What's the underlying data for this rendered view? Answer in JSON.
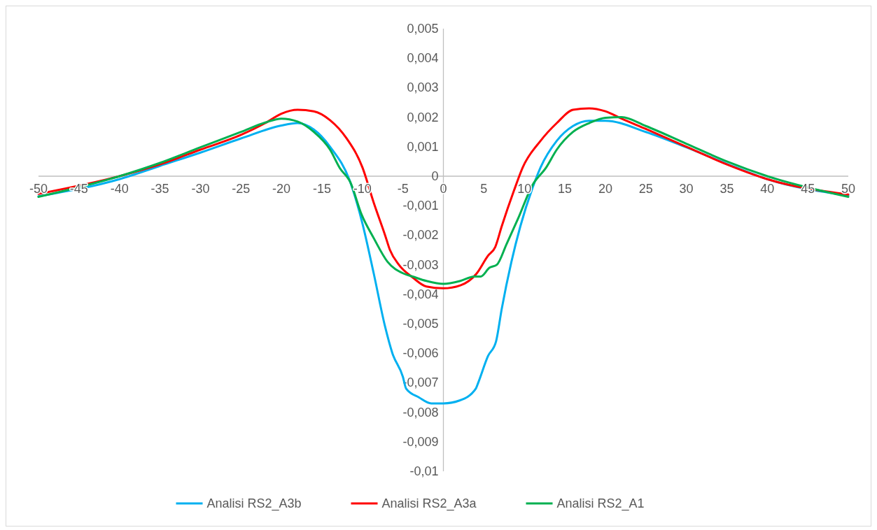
{
  "chart_data": {
    "type": "line",
    "legend": "bottom",
    "grid": false,
    "marker": "none",
    "line_style": "solid",
    "xlim": [
      -50,
      50
    ],
    "xticks": [
      -50,
      -45,
      -40,
      -35,
      -30,
      -25,
      -20,
      -15,
      -10,
      -5,
      0,
      5,
      10,
      15,
      20,
      25,
      30,
      35,
      40,
      45,
      50
    ],
    "ylim": [
      -0.01,
      0.005
    ],
    "yticks": [
      {
        "value": -0.01,
        "label": "-0,01"
      },
      {
        "value": -0.009,
        "label": "-0,009"
      },
      {
        "value": -0.008,
        "label": "-0,008"
      },
      {
        "value": -0.007,
        "label": "-0,007"
      },
      {
        "value": -0.006,
        "label": "-0,006"
      },
      {
        "value": -0.005,
        "label": "-0,005"
      },
      {
        "value": -0.004,
        "label": "-0,004"
      },
      {
        "value": -0.003,
        "label": "-0,003"
      },
      {
        "value": -0.002,
        "label": "-0,002"
      },
      {
        "value": -0.001,
        "label": "-0,001"
      },
      {
        "value": 0,
        "label": "0"
      },
      {
        "value": 0.001,
        "label": "0,001"
      },
      {
        "value": 0.002,
        "label": "0,002"
      },
      {
        "value": 0.003,
        "label": "0,003"
      },
      {
        "value": 0.004,
        "label": "0,004"
      },
      {
        "value": 0.005,
        "label": "0,005"
      }
    ],
    "series": [
      {
        "name": "Analisi RS2_A3b",
        "color": "#00b0f0",
        "x": [
          -50,
          -40,
          -35,
          -30,
          -25,
          -20,
          -18,
          -16,
          -14,
          -11.5,
          -10,
          -8.6,
          -7.2,
          -6.3,
          -5,
          -4.6,
          -3,
          -1.5,
          0,
          2,
          4,
          4.3,
          5.5,
          6.5,
          7.2,
          8.4,
          9.5,
          11,
          12,
          14,
          16,
          18,
          20,
          25,
          30,
          35,
          40,
          50
        ],
        "values": [
          -0.00068,
          -0.0001,
          0.00035,
          0.0008,
          0.00128,
          0.00172,
          0.0018,
          0.00158,
          0.001,
          -0.0002,
          -0.0016,
          -0.0033,
          -0.0051,
          -0.006,
          -0.0068,
          -0.0072,
          -0.0075,
          -0.0077,
          -0.0077,
          -0.0076,
          -0.0072,
          -0.007,
          -0.0061,
          -0.0056,
          -0.0045,
          -0.0029,
          -0.0017,
          -0.0004,
          0.0003,
          0.0012,
          0.0017,
          0.00188,
          0.00188,
          0.0015,
          0.00098,
          0.00042,
          -0.0001,
          -0.00065
        ]
      },
      {
        "name": "Analisi RS2_A3a",
        "color": "#ff0000",
        "x": [
          -50,
          -40,
          -35,
          -30,
          -25,
          -22,
          -20,
          -18,
          -16,
          -14,
          -12,
          -10,
          -8.6,
          -7.2,
          -6.6,
          -5.5,
          -3.8,
          -2.1,
          0,
          2.1,
          4.1,
          5.5,
          6.4,
          7.2,
          8.7,
          9.8,
          12,
          14,
          16,
          18,
          20,
          22,
          25,
          30,
          35,
          40,
          50
        ],
        "values": [
          -0.0006,
          0,
          0.0004,
          0.0009,
          0.0014,
          0.0018,
          0.00212,
          0.00225,
          0.0022,
          0.0019,
          0.0013,
          0.0003,
          -0.0009,
          -0.002,
          -0.0025,
          -0.003,
          -0.00343,
          -0.00374,
          -0.0038,
          -0.0037,
          -0.0033,
          -0.0027,
          -0.0024,
          -0.0017,
          -0.0005,
          0.0003,
          0.0012,
          0.0018,
          0.00225,
          0.0023,
          0.0022,
          0.00195,
          0.0016,
          0.001,
          0.0004,
          -0.0001,
          -0.00062
        ]
      },
      {
        "name": "Analisi RS2_A1",
        "color": "#00b050",
        "x": [
          -50,
          -40,
          -35,
          -30,
          -25,
          -22,
          -20,
          -18,
          -16,
          -14,
          -12.8,
          -11.5,
          -10.1,
          -8.6,
          -6.9,
          -4.9,
          -3.8,
          -2.1,
          0,
          2.1,
          3.8,
          4.6,
          5.7,
          6.6,
          7.8,
          9.2,
          11,
          12.7,
          14,
          16,
          18,
          20,
          22,
          25,
          30,
          35,
          40,
          50
        ],
        "values": [
          -0.0007,
          0,
          0.00045,
          0.00098,
          0.0015,
          0.00182,
          0.00195,
          0.00185,
          0.0015,
          0.0009,
          0.00028,
          -0.0002,
          -0.0013,
          -0.0021,
          -0.0029,
          -0.0033,
          -0.0034,
          -0.00355,
          -0.00365,
          -0.00355,
          -0.0034,
          -0.0034,
          -0.0031,
          -0.003,
          -0.0023,
          -0.00145,
          -0.0003,
          0.0003,
          0.0009,
          0.0015,
          0.0018,
          0.00198,
          0.002,
          0.0017,
          0.0011,
          0.0005,
          0,
          -0.0007
        ]
      }
    ]
  }
}
